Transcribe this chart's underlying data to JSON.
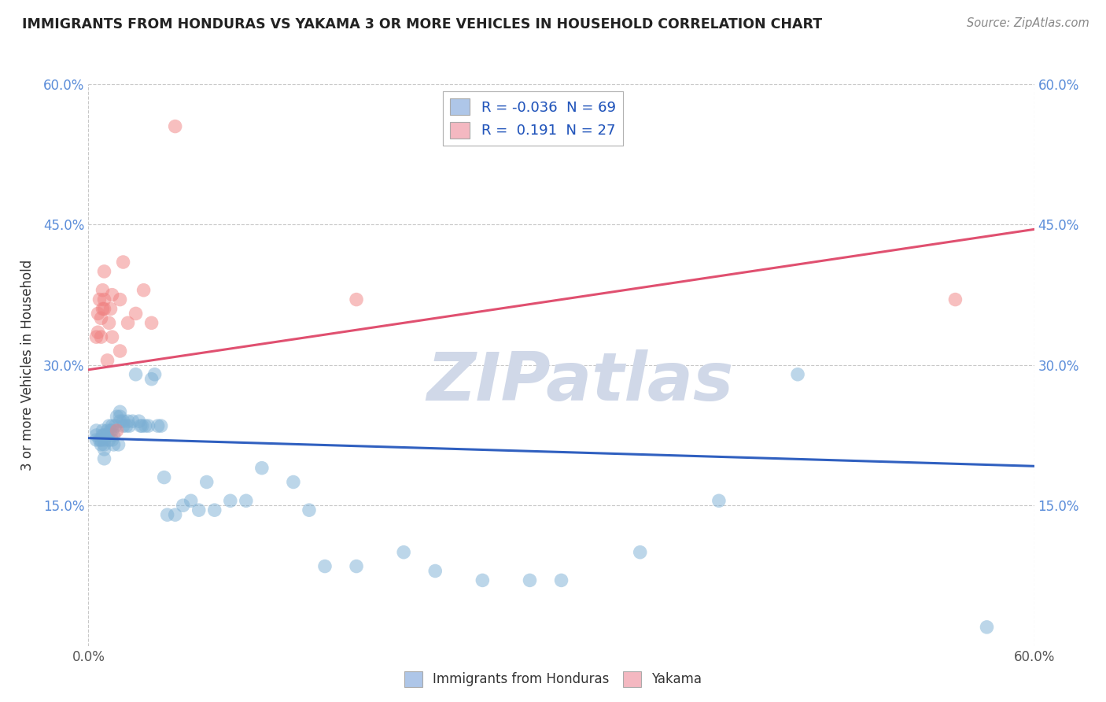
{
  "title": "IMMIGRANTS FROM HONDURAS VS YAKAMA 3 OR MORE VEHICLES IN HOUSEHOLD CORRELATION CHART",
  "source": "Source: ZipAtlas.com",
  "ylabel": "3 or more Vehicles in Household",
  "xlim": [
    0.0,
    0.6
  ],
  "ylim": [
    0.0,
    0.6
  ],
  "ytick_values": [
    0.15,
    0.3,
    0.45,
    0.6
  ],
  "ytick_labels": [
    "15.0%",
    "30.0%",
    "45.0%",
    "60.0%"
  ],
  "xtick_values": [
    0.0,
    0.6
  ],
  "xtick_labels": [
    "0.0%",
    "60.0%"
  ],
  "blue_scatter_x": [
    0.005,
    0.005,
    0.005,
    0.007,
    0.008,
    0.008,
    0.009,
    0.009,
    0.01,
    0.01,
    0.01,
    0.01,
    0.01,
    0.012,
    0.012,
    0.013,
    0.013,
    0.014,
    0.015,
    0.015,
    0.015,
    0.016,
    0.016,
    0.017,
    0.018,
    0.019,
    0.02,
    0.02,
    0.02,
    0.022,
    0.022,
    0.024,
    0.025,
    0.026,
    0.028,
    0.03,
    0.032,
    0.033,
    0.034,
    0.036,
    0.038,
    0.04,
    0.042,
    0.044,
    0.046,
    0.048,
    0.05,
    0.055,
    0.06,
    0.065,
    0.07,
    0.075,
    0.08,
    0.09,
    0.1,
    0.11,
    0.13,
    0.14,
    0.15,
    0.17,
    0.2,
    0.22,
    0.25,
    0.28,
    0.3,
    0.35,
    0.4,
    0.45,
    0.57
  ],
  "blue_scatter_y": [
    0.22,
    0.225,
    0.23,
    0.22,
    0.215,
    0.22,
    0.225,
    0.23,
    0.2,
    0.21,
    0.215,
    0.22,
    0.225,
    0.225,
    0.23,
    0.235,
    0.22,
    0.23,
    0.235,
    0.22,
    0.23,
    0.215,
    0.225,
    0.235,
    0.245,
    0.215,
    0.24,
    0.245,
    0.25,
    0.235,
    0.24,
    0.235,
    0.24,
    0.235,
    0.24,
    0.29,
    0.24,
    0.235,
    0.235,
    0.235,
    0.235,
    0.285,
    0.29,
    0.235,
    0.235,
    0.18,
    0.14,
    0.14,
    0.15,
    0.155,
    0.145,
    0.175,
    0.145,
    0.155,
    0.155,
    0.19,
    0.175,
    0.145,
    0.085,
    0.085,
    0.1,
    0.08,
    0.07,
    0.07,
    0.07,
    0.1,
    0.155,
    0.29,
    0.02
  ],
  "pink_scatter_x": [
    0.005,
    0.006,
    0.006,
    0.007,
    0.008,
    0.008,
    0.009,
    0.009,
    0.01,
    0.01,
    0.01,
    0.012,
    0.013,
    0.014,
    0.015,
    0.015,
    0.018,
    0.02,
    0.02,
    0.022,
    0.025,
    0.03,
    0.035,
    0.04,
    0.055,
    0.17,
    0.55
  ],
  "pink_scatter_y": [
    0.33,
    0.335,
    0.355,
    0.37,
    0.33,
    0.35,
    0.36,
    0.38,
    0.36,
    0.37,
    0.4,
    0.305,
    0.345,
    0.36,
    0.33,
    0.375,
    0.23,
    0.315,
    0.37,
    0.41,
    0.345,
    0.355,
    0.38,
    0.345,
    0.555,
    0.37,
    0.37
  ],
  "blue_line_x": [
    0.0,
    0.6
  ],
  "blue_line_y": [
    0.222,
    0.192
  ],
  "pink_line_x": [
    0.0,
    0.6
  ],
  "pink_line_y": [
    0.295,
    0.445
  ],
  "blue_color": "#7bafd4",
  "pink_color": "#f08080",
  "blue_line_color": "#3060c0",
  "pink_line_color": "#e05070",
  "background_color": "#ffffff",
  "grid_color": "#c8c8c8",
  "watermark_color": "#d0d8e8",
  "watermark_text": "ZIPatlas"
}
